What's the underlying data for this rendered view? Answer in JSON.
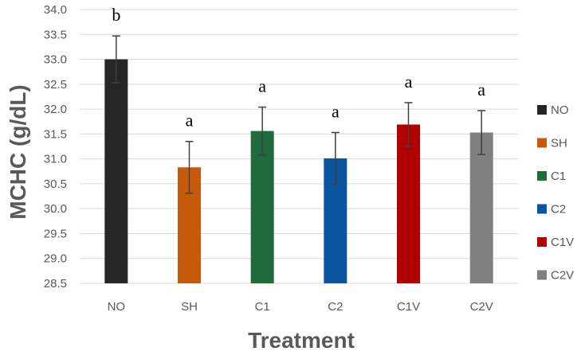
{
  "chart_data": {
    "type": "bar",
    "title": "",
    "xlabel": "Treatment",
    "ylabel": "MCHC (g/dL)",
    "categories": [
      "NO",
      "SH",
      "C1",
      "C2",
      "C1V",
      "C2V"
    ],
    "values": [
      33.0,
      30.83,
      31.56,
      31.01,
      31.69,
      31.53
    ],
    "errors": [
      0.47,
      0.52,
      0.48,
      0.52,
      0.44,
      0.44
    ],
    "significance": [
      "b",
      "a",
      "a",
      "a",
      "a",
      "a"
    ],
    "colors": [
      "#262626",
      "#C55A0B",
      "#1F6B3C",
      "#0B55A0",
      "#B00000",
      "#808080"
    ],
    "ylim": [
      28.5,
      34.0
    ],
    "ytick_step": 0.5,
    "grid": true,
    "legend": {
      "position": "right",
      "entries": [
        "NO",
        "SH",
        "C1",
        "C2",
        "C1V",
        "C2V"
      ]
    }
  }
}
